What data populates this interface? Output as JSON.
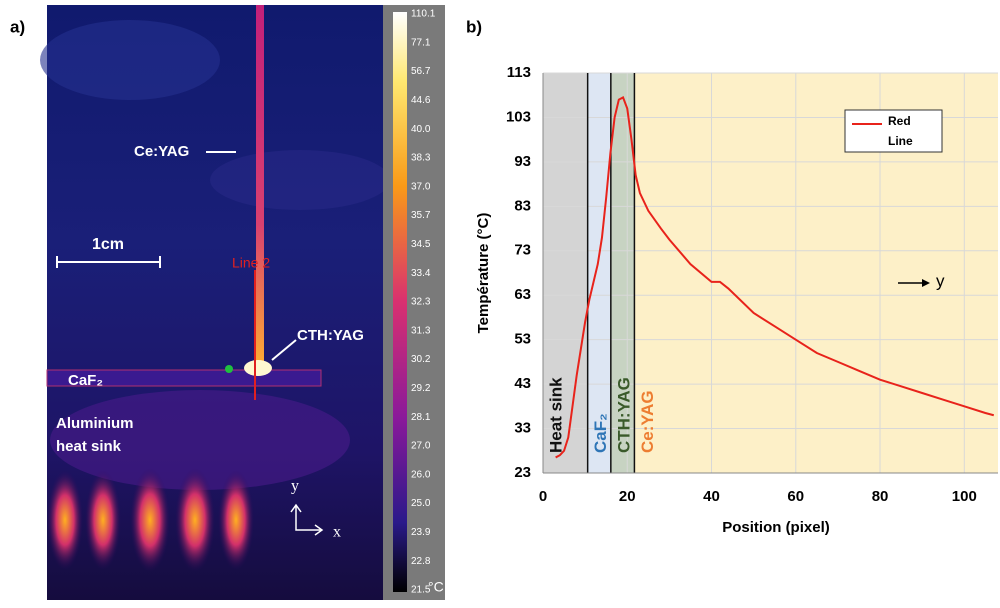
{
  "image": {
    "panel_label": "a)",
    "ce_yag": "Ce:YAG",
    "scale": "1cm",
    "line_label": "Line 2",
    "cth_yag": "CTH:YAG",
    "caf2": "CaF₂",
    "sink_1": "Aluminium",
    "sink_2": "heat sink",
    "axis_y": "y",
    "axis_x": "x",
    "colorbar_labels": [
      "110.1",
      "77.1",
      "56.7",
      "44.6",
      "40.0",
      "38.3",
      "37.0",
      "35.7",
      "34.5",
      "33.4",
      "32.3",
      "31.3",
      "30.2",
      "29.2",
      "28.1",
      "27.0",
      "26.0",
      "25.0",
      "23.9",
      "22.8",
      "21.5"
    ],
    "colorbar_unit": "°C"
  },
  "chart_data": {
    "type": "line",
    "panel_label": "b)",
    "x_label": "Position (pixel)",
    "y_label": "Température (°C)",
    "xlim": [
      0,
      108
    ],
    "xticks": [
      0,
      20,
      40,
      60,
      80,
      100
    ],
    "ylim": [
      23,
      113
    ],
    "yticks": [
      23,
      33,
      43,
      53,
      63,
      73,
      83,
      93,
      103,
      113
    ],
    "legend": "top-right",
    "annotation": "y",
    "regions": [
      {
        "label": "Heat sink",
        "from": 0,
        "to": 10.6,
        "color": "#d4d4d4",
        "text_color": "#111111"
      },
      {
        "label": "CaF₂",
        "from": 10.6,
        "to": 16.1,
        "color": "#dde6f3",
        "text_color": "#2e75b6"
      },
      {
        "label": "CTH:YAG",
        "from": 16.1,
        "to": 21.7,
        "color": "#c7d3c2",
        "text_color": "#3a5a2a"
      },
      {
        "label": "Ce:YAG",
        "from": 21.7,
        "to": 108,
        "color": "#fdf0c8",
        "text_color": "#ed7d31"
      }
    ],
    "series": [
      {
        "name": "Red Line",
        "color": "#e8231b",
        "x": [
          3,
          4,
          5,
          6,
          7,
          8,
          9,
          10,
          11,
          12,
          13,
          14,
          15,
          16,
          17,
          18,
          19,
          20,
          21,
          22,
          23,
          25,
          28,
          30,
          35,
          40,
          42,
          44,
          50,
          55,
          60,
          65,
          70,
          75,
          80,
          85,
          90,
          95,
          100,
          105,
          107
        ],
        "values": [
          26.5,
          27,
          28,
          31,
          38,
          45,
          51,
          57,
          62,
          66,
          70,
          76,
          85,
          95,
          103,
          107,
          107.5,
          105,
          98,
          90,
          86,
          82,
          78,
          75.5,
          70,
          66,
          66,
          64.5,
          59,
          56,
          53,
          50,
          48,
          46,
          44,
          42.5,
          41,
          39.5,
          38,
          36.5,
          36
        ]
      }
    ]
  }
}
